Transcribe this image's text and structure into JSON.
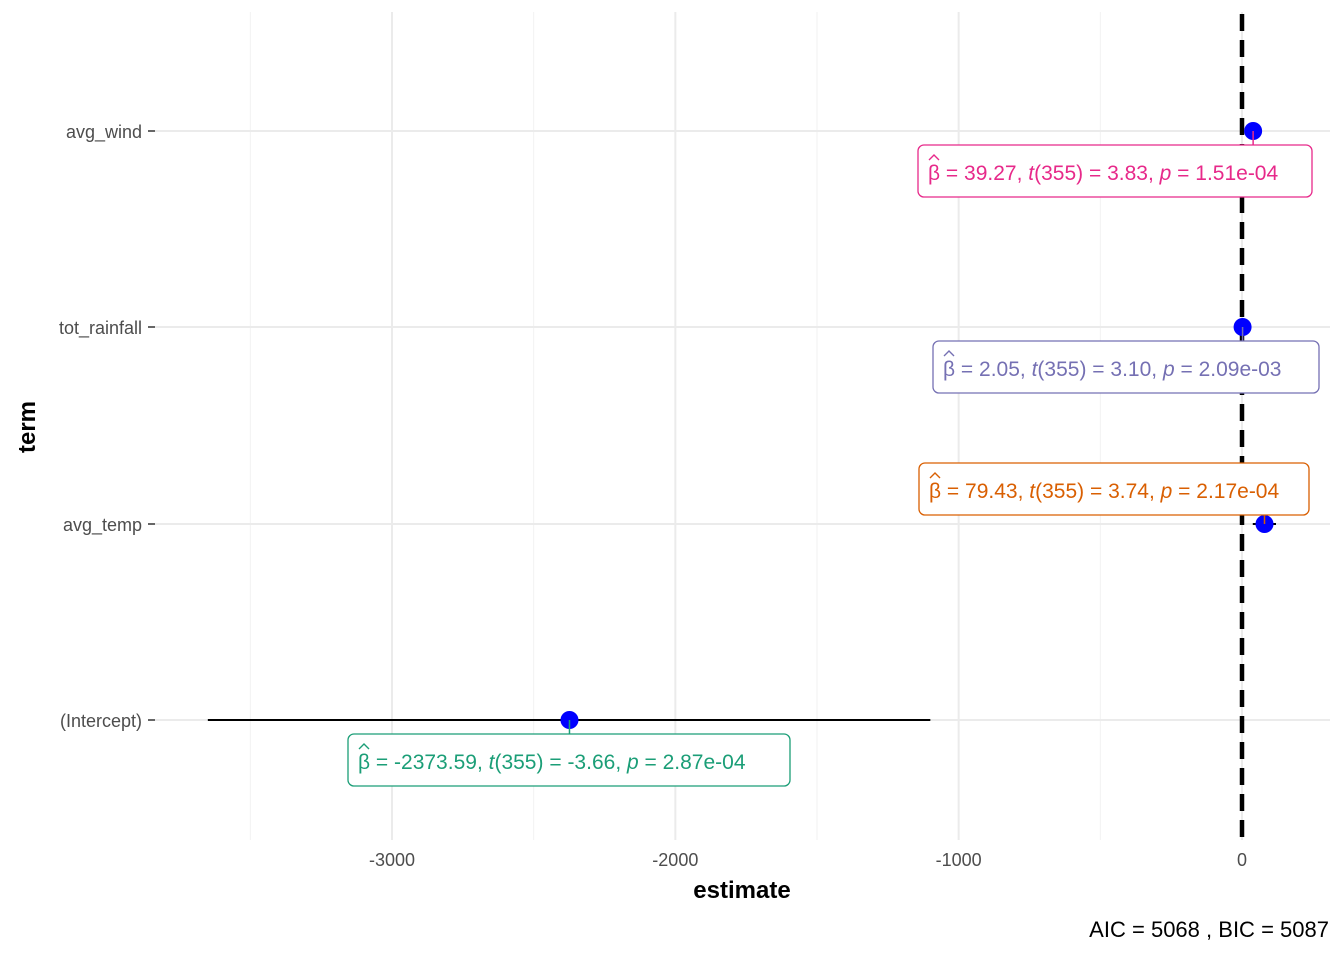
{
  "chart_data": {
    "type": "forest",
    "xlabel": "estimate",
    "ylabel": "term",
    "xlim": [
      -3800,
      330
    ],
    "x_ticks": [
      -3000,
      -2000,
      -1000,
      0
    ],
    "x_tick_labels": [
      "-3000",
      "-2000",
      "-1000",
      "0"
    ],
    "x_minor_ticks": [
      -3500,
      -2500,
      -1500,
      -500
    ],
    "reference_line": 0,
    "grid": true,
    "point_color": "#0000ff",
    "terms": [
      "(Intercept)",
      "avg_temp",
      "tot_rainfall",
      "avg_wind"
    ],
    "rows": [
      {
        "term": "(Intercept)",
        "estimate": -2373.59,
        "ci_low": -3650,
        "ci_high": -1100,
        "color": "#1b9e77",
        "beta": "-2373.59",
        "df": "355",
        "t": "-3.66",
        "p": "2.87e-04"
      },
      {
        "term": "avg_temp",
        "estimate": 79.43,
        "ci_low": 38,
        "ci_high": 120,
        "color": "#d95f02",
        "beta": "79.43",
        "df": "355",
        "t": "3.74",
        "p": "2.17e-04"
      },
      {
        "term": "tot_rainfall",
        "estimate": 2.05,
        "ci_low": 0.75,
        "ci_high": 3.35,
        "color": "#7570b3",
        "beta": "2.05",
        "df": "355",
        "t": "3.10",
        "p": "2.09e-03"
      },
      {
        "term": "avg_wind",
        "estimate": 39.27,
        "ci_low": 19,
        "ci_high": 59.5,
        "color": "#e7298a",
        "beta": "39.27",
        "df": "355",
        "t": "3.83",
        "p": "1.51e-04"
      }
    ],
    "caption": {
      "aic_label": "AIC",
      "aic": "5068",
      "bic_label": "BIC",
      "bic": "5087"
    }
  }
}
